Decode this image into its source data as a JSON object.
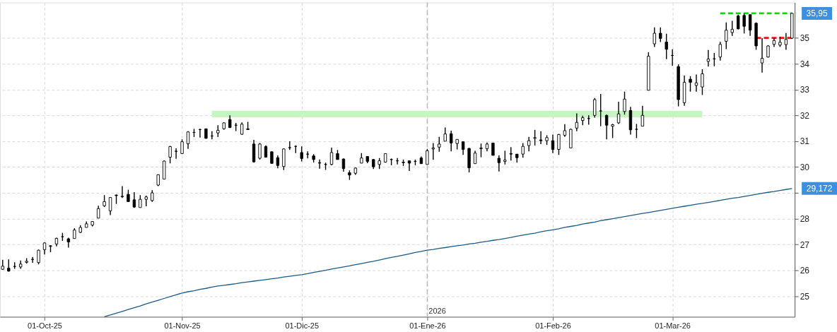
{
  "chart_data": {
    "type": "candlestick",
    "categories": [
      null,
      null,
      null,
      null,
      null,
      null,
      null,
      "01-Oct-25",
      null,
      null,
      null,
      null,
      null,
      null,
      null,
      null,
      null,
      null,
      null,
      null,
      null,
      null,
      null,
      null,
      null,
      null,
      null,
      null,
      null,
      null,
      "01-Nov-25",
      null,
      null,
      null,
      null,
      null,
      null,
      null,
      null,
      null,
      null,
      null,
      null,
      null,
      null,
      null,
      null,
      null,
      null,
      null,
      "01-Dic-25",
      null,
      null,
      null,
      null,
      null,
      null,
      null,
      null,
      null,
      null,
      null,
      null,
      null,
      null,
      null,
      null,
      null,
      null,
      null,
      null,
      "01-Ene-26",
      null,
      null,
      null,
      null,
      null,
      null,
      null,
      null,
      null,
      null,
      null,
      null,
      null,
      null,
      null,
      null,
      null,
      null,
      null,
      null,
      "01-Feb-26",
      null,
      null,
      null,
      null,
      null,
      null,
      null,
      null,
      null,
      null,
      null,
      null,
      null,
      null,
      null,
      null,
      null,
      null,
      null,
      "01-Mar-26",
      null,
      null,
      null,
      null,
      null,
      null,
      null,
      null,
      null,
      null,
      null,
      null,
      null,
      null,
      null,
      null,
      null,
      null,
      null,
      null
    ],
    "ohlc": [
      [
        26.04,
        26.41,
        26.02,
        26.16
      ],
      [
        26.08,
        26.42,
        25.95,
        25.97
      ],
      [
        26.15,
        26.31,
        26.06,
        26.15
      ],
      [
        26.13,
        26.38,
        26.06,
        26.24
      ],
      [
        26.31,
        26.47,
        26.26,
        26.35
      ],
      [
        26.42,
        26.52,
        26.29,
        26.42
      ],
      [
        26.3,
        26.8,
        26.23,
        26.78
      ],
      [
        26.8,
        27.08,
        26.61,
        27.06
      ],
      [
        26.95,
        26.97,
        26.7,
        26.93
      ],
      [
        27.02,
        27.26,
        26.93,
        27.24
      ],
      [
        27.3,
        27.45,
        27.14,
        27.3
      ],
      [
        27.22,
        27.26,
        26.88,
        27.1
      ],
      [
        27.23,
        27.63,
        27.23,
        27.56
      ],
      [
        27.47,
        27.75,
        27.45,
        27.66
      ],
      [
        27.66,
        27.89,
        27.66,
        27.8
      ],
      [
        27.75,
        27.9,
        27.7,
        27.89
      ],
      [
        28.02,
        28.5,
        28.02,
        28.39
      ],
      [
        28.5,
        28.91,
        28.45,
        28.66
      ],
      [
        28.3,
        28.82,
        28.14,
        28.82
      ],
      [
        28.91,
        28.94,
        28.57,
        28.89
      ],
      [
        28.85,
        29.26,
        28.8,
        28.87
      ],
      [
        28.94,
        29.12,
        28.66,
        28.66
      ],
      [
        28.73,
        29.03,
        28.42,
        28.45
      ],
      [
        28.43,
        28.91,
        28.43,
        28.75
      ],
      [
        28.75,
        28.89,
        28.48,
        28.84
      ],
      [
        28.7,
        29.1,
        28.65,
        29.0
      ],
      [
        29.3,
        29.72,
        29.26,
        29.7
      ],
      [
        29.53,
        30.25,
        29.52,
        30.23
      ],
      [
        30.38,
        30.82,
        30.14,
        30.79
      ],
      [
        30.61,
        30.72,
        30.32,
        30.61
      ],
      [
        30.52,
        31.07,
        30.5,
        30.98
      ],
      [
        30.9,
        31.39,
        30.7,
        31.36
      ],
      [
        31.34,
        31.48,
        31.16,
        31.34
      ],
      [
        31.45,
        31.48,
        31.14,
        31.45
      ],
      [
        31.48,
        31.48,
        31.1,
        31.11
      ],
      [
        31.2,
        31.39,
        31.07,
        31.2
      ],
      [
        31.32,
        31.62,
        31.16,
        31.42
      ],
      [
        31.48,
        31.73,
        31.45,
        31.71
      ],
      [
        31.84,
        32.0,
        31.51,
        31.53
      ],
      [
        31.62,
        31.71,
        31.39,
        31.62
      ],
      [
        31.27,
        31.73,
        31.25,
        31.66
      ],
      [
        31.48,
        31.75,
        31.45,
        31.45
      ],
      [
        30.89,
        31.05,
        30.17,
        30.2
      ],
      [
        30.34,
        30.93,
        30.29,
        30.89
      ],
      [
        30.79,
        30.84,
        30.38,
        30.38
      ],
      [
        30.59,
        30.61,
        30.14,
        30.14
      ],
      [
        30.36,
        30.45,
        29.95,
        30.06
      ],
      [
        30.02,
        30.72,
        29.88,
        30.7
      ],
      [
        30.75,
        31.0,
        30.66,
        30.75
      ],
      [
        30.8,
        30.84,
        30.54,
        30.8
      ],
      [
        30.56,
        30.8,
        30.22,
        30.33
      ],
      [
        30.5,
        30.61,
        30.33,
        30.5
      ],
      [
        30.43,
        30.5,
        30.17,
        30.29
      ],
      [
        30.17,
        30.29,
        29.94,
        30.15
      ],
      [
        30.1,
        30.17,
        29.89,
        30.1
      ],
      [
        30.1,
        30.75,
        30.07,
        30.56
      ],
      [
        30.52,
        30.66,
        30.29,
        30.29
      ],
      [
        30.31,
        30.33,
        29.82,
        29.94
      ],
      [
        29.78,
        29.87,
        29.5,
        29.69
      ],
      [
        29.76,
        29.98,
        29.7,
        29.96
      ],
      [
        30.15,
        30.54,
        30.15,
        30.35
      ],
      [
        30.41,
        30.41,
        30.15,
        30.22
      ],
      [
        30.29,
        30.31,
        29.92,
        30.01
      ],
      [
        30.1,
        30.35,
        29.92,
        30.24
      ],
      [
        30.19,
        30.52,
        30.17,
        30.52
      ],
      [
        30.29,
        30.33,
        30.07,
        30.29
      ],
      [
        30.24,
        30.35,
        30.1,
        30.24
      ],
      [
        30.19,
        30.29,
        30.04,
        30.17
      ],
      [
        30.24,
        30.24,
        29.85,
        30.15
      ],
      [
        30.22,
        30.29,
        30.07,
        30.22
      ],
      [
        30.35,
        30.41,
        30.13,
        30.13
      ],
      [
        30.1,
        30.7,
        30.1,
        30.63
      ],
      [
        30.7,
        30.93,
        30.28,
        30.74
      ],
      [
        30.77,
        31.17,
        30.59,
        30.89
      ],
      [
        31.0,
        31.53,
        31.0,
        31.28
      ],
      [
        31.29,
        31.41,
        30.61,
        30.93
      ],
      [
        30.91,
        31.07,
        30.68,
        31.07
      ],
      [
        30.98,
        30.98,
        30.47,
        30.68
      ],
      [
        30.72,
        30.74,
        29.79,
        29.97
      ],
      [
        30.13,
        30.63,
        30.13,
        30.54
      ],
      [
        30.71,
        30.91,
        30.38,
        30.74
      ],
      [
        30.71,
        30.95,
        30.61,
        30.89
      ],
      [
        30.93,
        30.93,
        30.45,
        30.45
      ],
      [
        30.34,
        30.45,
        29.83,
        30.17
      ],
      [
        30.22,
        30.63,
        30.1,
        30.27
      ],
      [
        30.52,
        30.77,
        30.25,
        30.5
      ],
      [
        30.5,
        30.5,
        30.17,
        30.36
      ],
      [
        30.5,
        30.93,
        30.36,
        30.8
      ],
      [
        30.83,
        31.17,
        30.61,
        31.02
      ],
      [
        31.11,
        31.44,
        30.83,
        31.14
      ],
      [
        31.05,
        31.39,
        30.89,
        31.02
      ],
      [
        31.02,
        31.23,
        30.86,
        31.14
      ],
      [
        31.02,
        31.26,
        30.54,
        30.68
      ],
      [
        30.68,
        31.28,
        30.47,
        31.26
      ],
      [
        31.23,
        31.66,
        31.17,
        31.41
      ],
      [
        30.74,
        31.48,
        30.74,
        31.46
      ],
      [
        31.51,
        32.08,
        31.39,
        31.73
      ],
      [
        31.8,
        31.99,
        31.62,
        31.91
      ],
      [
        31.88,
        32.0,
        31.64,
        31.88
      ],
      [
        32.0,
        32.67,
        31.91,
        32.61
      ],
      [
        32.17,
        32.83,
        31.58,
        32.17
      ],
      [
        32.0,
        32.03,
        31.07,
        31.62
      ],
      [
        31.58,
        31.67,
        31.12,
        31.64
      ],
      [
        31.71,
        32.53,
        31.67,
        32.06
      ],
      [
        32.15,
        32.92,
        32.03,
        32.63
      ],
      [
        32.19,
        32.33,
        31.26,
        31.44
      ],
      [
        31.46,
        31.67,
        31.12,
        31.46
      ],
      [
        31.58,
        32.37,
        31.58,
        32.0
      ],
      [
        32.97,
        34.45,
        32.97,
        34.29
      ],
      [
        34.77,
        35.41,
        34.65,
        35.18
      ],
      [
        35.18,
        35.41,
        34.84,
        34.98
      ],
      [
        34.84,
        35.16,
        34.18,
        34.56
      ],
      [
        34.32,
        34.56,
        33.92,
        34.32
      ],
      [
        33.89,
        33.98,
        32.35,
        32.61
      ],
      [
        32.49,
        33.54,
        32.37,
        33.28
      ],
      [
        33.4,
        33.52,
        32.92,
        33.28
      ],
      [
        33.16,
        33.58,
        32.92,
        33.26
      ],
      [
        33.1,
        33.79,
        32.79,
        33.61
      ],
      [
        34.09,
        34.53,
        33.89,
        34.18
      ],
      [
        34.19,
        34.42,
        33.9,
        34.19
      ],
      [
        34.26,
        34.85,
        34.12,
        34.75
      ],
      [
        34.87,
        35.6,
        34.57,
        35.3
      ],
      [
        35.21,
        35.66,
        35.08,
        35.33
      ],
      [
        35.85,
        35.9,
        35.33,
        35.35
      ],
      [
        35.87,
        35.94,
        35.17,
        35.45
      ],
      [
        35.9,
        35.9,
        35.08,
        35.3
      ],
      [
        35.57,
        35.6,
        34.54,
        34.69
      ],
      [
        34.03,
        34.99,
        33.66,
        34.21
      ],
      [
        34.26,
        34.72,
        34.24,
        34.69
      ],
      [
        34.75,
        35.0,
        34.65,
        34.9
      ],
      [
        34.72,
        35.05,
        34.65,
        34.83
      ],
      [
        34.74,
        35.19,
        34.54,
        34.94
      ],
      [
        34.99,
        35.97,
        34.96,
        35.95
      ]
    ],
    "series": [
      {
        "type": "line",
        "color": "#c6f5c1",
        "line_style": "solid",
        "values": [
          null,
          null,
          null,
          null,
          null,
          null,
          null,
          null,
          null,
          null,
          null,
          null,
          null,
          null,
          null,
          null,
          null,
          null,
          null,
          null,
          null,
          null,
          null,
          null,
          null,
          null,
          null,
          null,
          null,
          null,
          null,
          null,
          null,
          null,
          null,
          32.05,
          32.05,
          32.05,
          32.05,
          32.05,
          32.05,
          32.05,
          32.05,
          32.05,
          32.05,
          32.05,
          32.05,
          32.05,
          32.05,
          32.05,
          32.05,
          32.05,
          32.05,
          32.05,
          32.05,
          32.05,
          32.05,
          32.05,
          32.05,
          32.05,
          32.05,
          32.05,
          32.05,
          32.05,
          32.05,
          32.05,
          32.05,
          32.05,
          32.05,
          32.05,
          32.05,
          32.05,
          32.05,
          32.05,
          32.05,
          32.05,
          32.05,
          32.05,
          32.05,
          32.05,
          32.05,
          32.05,
          32.05,
          32.05,
          32.05,
          32.05,
          32.05,
          32.05,
          32.05,
          32.05,
          32.05,
          32.05,
          32.05,
          32.05,
          32.05,
          32.05,
          32.05,
          32.05,
          32.05,
          32.05,
          32.05,
          32.05,
          32.05,
          32.05,
          32.05,
          32.05,
          32.05,
          32.05,
          32.05,
          32.05,
          32.05,
          32.05,
          32.05,
          32.05,
          32.05,
          32.05,
          32.05,
          32.05,
          null,
          null,
          null,
          null,
          null,
          null,
          null,
          null,
          null,
          null,
          null,
          null,
          null,
          null,
          null
        ]
      },
      {
        "type": "line",
        "color": "#1b5a85",
        "line_style": "solid",
        "values": [
          null,
          null,
          null,
          null,
          null,
          null,
          null,
          null,
          null,
          null,
          null,
          null,
          null,
          null,
          null,
          null,
          null,
          24.2,
          24.27,
          24.34,
          24.41,
          24.48,
          24.55,
          24.62,
          24.7,
          24.77,
          24.84,
          24.91,
          24.98,
          25.05,
          25.12,
          25.17,
          25.21,
          25.26,
          25.3,
          25.35,
          25.39,
          25.42,
          25.45,
          25.48,
          25.52,
          25.55,
          25.58,
          25.61,
          25.64,
          25.67,
          25.7,
          25.74,
          25.77,
          25.8,
          25.83,
          25.87,
          25.92,
          25.96,
          26.0,
          26.05,
          26.09,
          26.13,
          26.17,
          26.22,
          26.26,
          26.31,
          26.35,
          26.4,
          26.45,
          26.5,
          26.54,
          26.59,
          26.64,
          26.69,
          26.73,
          26.78,
          26.81,
          26.85,
          26.88,
          26.92,
          26.95,
          26.98,
          27.02,
          27.05,
          27.09,
          27.12,
          27.16,
          27.19,
          27.23,
          27.27,
          27.32,
          27.36,
          27.4,
          27.44,
          27.49,
          27.53,
          27.57,
          27.61,
          27.66,
          27.7,
          27.74,
          27.79,
          27.83,
          27.87,
          27.92,
          27.96,
          28.0,
          28.04,
          28.08,
          28.12,
          28.16,
          28.2,
          28.24,
          28.28,
          28.32,
          28.36,
          28.4,
          28.44,
          28.48,
          28.52,
          28.56,
          28.59,
          28.63,
          28.67,
          28.71,
          28.75,
          28.79,
          28.82,
          28.86,
          28.9,
          28.94,
          28.98,
          29.02,
          29.05,
          29.09,
          29.13,
          29.17
        ]
      },
      {
        "type": "line",
        "color": "#00dd00",
        "line_style": "dashed",
        "values": [
          null,
          null,
          null,
          null,
          null,
          null,
          null,
          null,
          null,
          null,
          null,
          null,
          null,
          null,
          null,
          null,
          null,
          null,
          null,
          null,
          null,
          null,
          null,
          null,
          null,
          null,
          null,
          null,
          null,
          null,
          null,
          null,
          null,
          null,
          null,
          null,
          null,
          null,
          null,
          null,
          null,
          null,
          null,
          null,
          null,
          null,
          null,
          null,
          null,
          null,
          null,
          null,
          null,
          null,
          null,
          null,
          null,
          null,
          null,
          null,
          null,
          null,
          null,
          null,
          null,
          null,
          null,
          null,
          null,
          null,
          null,
          null,
          null,
          null,
          null,
          null,
          null,
          null,
          null,
          null,
          null,
          null,
          null,
          null,
          null,
          null,
          null,
          null,
          null,
          null,
          null,
          null,
          null,
          null,
          null,
          null,
          null,
          null,
          null,
          null,
          null,
          null,
          null,
          null,
          null,
          null,
          null,
          null,
          null,
          null,
          null,
          null,
          null,
          null,
          null,
          null,
          null,
          null,
          null,
          null,
          35.95,
          35.95,
          35.95,
          35.95,
          35.95,
          35.95,
          35.95,
          35.95,
          35.95,
          35.95,
          35.95,
          35.95,
          35.95
        ]
      },
      {
        "type": "line",
        "color": "#ee1111",
        "line_style": "dashed",
        "values": [
          null,
          null,
          null,
          null,
          null,
          null,
          null,
          null,
          null,
          null,
          null,
          null,
          null,
          null,
          null,
          null,
          null,
          null,
          null,
          null,
          null,
          null,
          null,
          null,
          null,
          null,
          null,
          null,
          null,
          null,
          null,
          null,
          null,
          null,
          null,
          null,
          null,
          null,
          null,
          null,
          null,
          null,
          null,
          null,
          null,
          null,
          null,
          null,
          null,
          null,
          null,
          null,
          null,
          null,
          null,
          null,
          null,
          null,
          null,
          null,
          null,
          null,
          null,
          null,
          null,
          null,
          null,
          null,
          null,
          null,
          null,
          null,
          null,
          null,
          null,
          null,
          null,
          null,
          null,
          null,
          null,
          null,
          null,
          null,
          null,
          null,
          null,
          null,
          null,
          null,
          null,
          null,
          null,
          null,
          null,
          null,
          null,
          null,
          null,
          null,
          null,
          null,
          null,
          null,
          null,
          null,
          null,
          null,
          null,
          null,
          null,
          null,
          null,
          null,
          null,
          null,
          null,
          null,
          null,
          null,
          null,
          null,
          null,
          null,
          null,
          null,
          35.0,
          35.0,
          35.0,
          35.0,
          35.0,
          35.0,
          35.0
        ]
      }
    ],
    "ylim": [
      24.2,
      36.37
    ],
    "yticks": [
      25,
      26,
      27,
      28,
      {
        "value": 29,
        "label": null
      },
      30,
      31,
      32,
      33,
      34,
      35
    ],
    "ref_lines": [
      {
        "axis": "x",
        "value": "01-Ene-26",
        "color": "#bbbbbb",
        "line_style": "dashed"
      }
    ],
    "annotations": [
      {
        "text": "2026",
        "x": "01-Ene-26"
      },
      "35,95",
      "29,172"
    ],
    "grid": true
  }
}
